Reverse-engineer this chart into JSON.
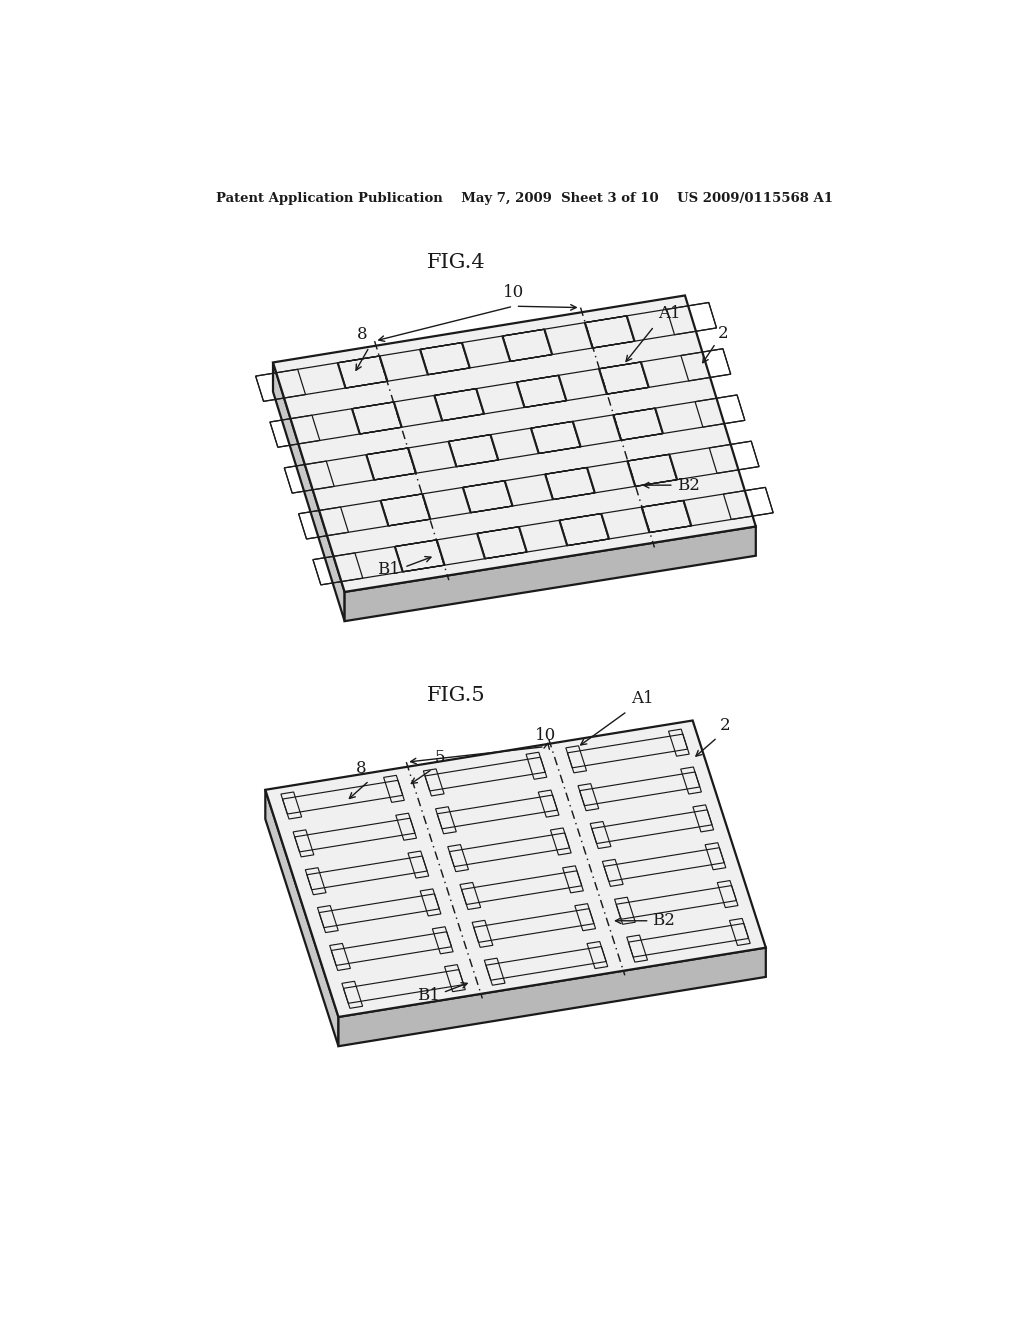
{
  "bg_color": "#ffffff",
  "line_color": "#1a1a1a",
  "header": "Patent Application Publication    May 7, 2009  Sheet 3 of 10    US 2009/0115568 A1",
  "fig4_title": "FIG.4",
  "fig5_title": "FIG.5"
}
